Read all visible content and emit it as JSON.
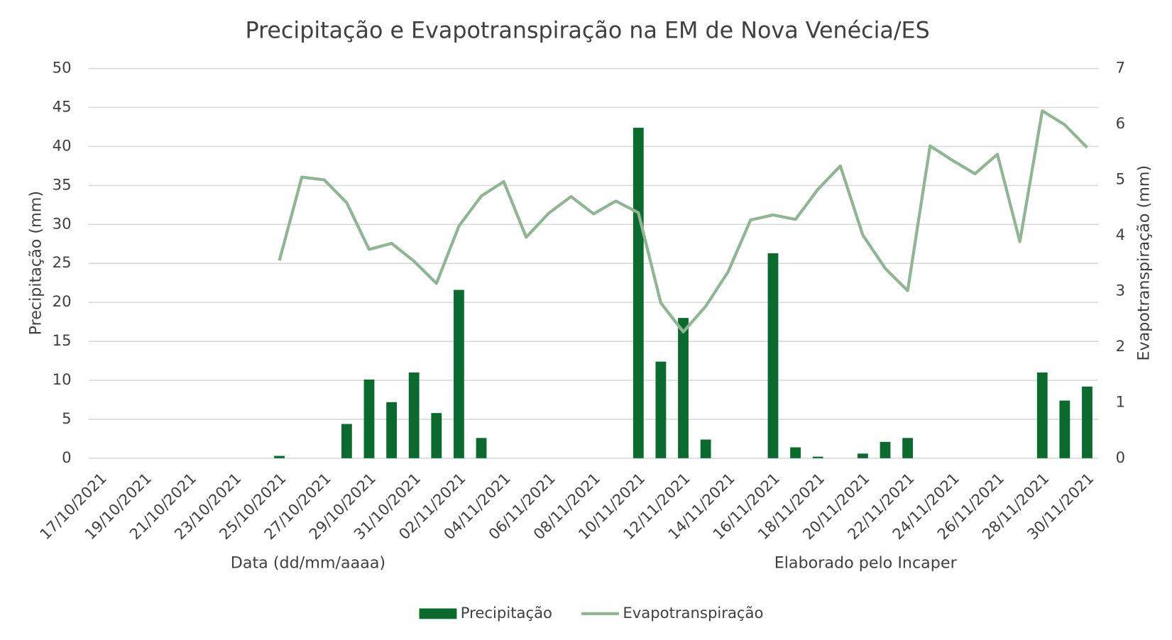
{
  "chart_data": {
    "type": "bar-line",
    "title": "Precipitação e Evapotranspiração na EM de Nova Venécia/ES",
    "ylabel": "Precipitação (mm)",
    "y2label": "Evapotranspiração (mm)",
    "xlabel": "Data (dd/mm/aaaa)",
    "annotation": "Elaborado pelo Incaper",
    "categories": [
      "17/10/2021",
      null,
      "19/10/2021",
      null,
      "21/10/2021",
      null,
      "23/10/2021",
      null,
      "25/10/2021",
      null,
      "27/10/2021",
      null,
      "29/10/2021",
      null,
      "31/10/2021",
      null,
      "02/11/2021",
      null,
      "04/11/2021",
      null,
      "06/11/2021",
      null,
      "08/11/2021",
      null,
      "10/11/2021",
      null,
      "12/11/2021",
      null,
      "14/11/2021",
      null,
      "16/11/2021",
      null,
      "18/11/2021",
      null,
      "20/11/2021",
      null,
      "22/11/2021",
      null,
      "24/11/2021",
      null,
      "26/11/2021",
      null,
      "28/11/2021",
      null,
      "30/11/2021"
    ],
    "series": [
      {
        "name": "Precipitação",
        "type": "bar",
        "color": "#0b6b2e",
        "values": [
          0,
          0,
          0,
          0,
          0,
          0,
          0,
          0,
          0.3,
          0,
          0,
          4.4,
          10.1,
          7.2,
          11,
          5.8,
          21.6,
          2.6,
          0,
          0,
          0,
          0,
          0,
          0,
          42.4,
          12.4,
          18,
          2.4,
          0,
          0,
          26.3,
          1.4,
          0.2,
          0,
          0.6,
          2.1,
          2.6,
          0,
          0,
          0,
          0,
          0,
          11,
          7.4,
          9.2
        ]
      },
      {
        "name": "Evapotranspiração",
        "type": "line",
        "axis": "y2",
        "color": "#8fb594",
        "values": [
          null,
          null,
          null,
          null,
          null,
          null,
          null,
          null,
          3.55,
          5.05,
          5.0,
          4.59,
          3.75,
          3.86,
          3.54,
          3.14,
          4.17,
          4.71,
          4.97,
          3.97,
          4.4,
          4.7,
          4.39,
          4.62,
          4.41,
          2.79,
          2.27,
          2.73,
          3.35,
          4.28,
          4.37,
          4.29,
          4.83,
          5.25,
          4.01,
          3.41,
          3.01,
          5.61,
          5.35,
          5.11,
          5.46,
          3.89,
          6.24,
          5.99,
          5.58
        ]
      }
    ],
    "ylim": [
      0,
      50
    ],
    "yticks": [
      0,
      5,
      10,
      15,
      20,
      25,
      30,
      35,
      40,
      45,
      50
    ],
    "y2lim": [
      0,
      7
    ],
    "y2ticks": [
      0,
      1,
      2,
      3,
      4,
      5,
      6,
      7
    ],
    "grid": true,
    "legend": "bottom"
  }
}
